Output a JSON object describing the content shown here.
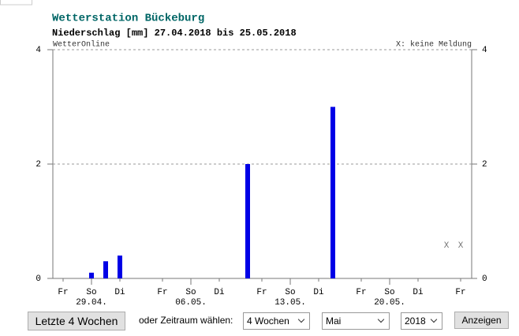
{
  "chart_data": {
    "type": "bar",
    "title": "Wetterstation Bückeburg",
    "subtitle": "Niederschlag [mm] 27.04.2018 bis 25.05.2018",
    "source": "WetterOnline",
    "legend_note": "X: keine Meldung",
    "missing_marker": "X",
    "categories": [
      "Fr",
      null,
      "So",
      null,
      "Di",
      null,
      null,
      "Fr",
      null,
      "So",
      null,
      "Di",
      null,
      null,
      "Fr",
      null,
      "So",
      null,
      "Di",
      null,
      null,
      "Fr",
      null,
      "So",
      null,
      "Di",
      null,
      null,
      "Fr"
    ],
    "date_labels": [
      null,
      null,
      "29.04.",
      null,
      null,
      null,
      null,
      null,
      null,
      "06.05.",
      null,
      null,
      null,
      null,
      null,
      null,
      "13.05.",
      null,
      null,
      null,
      null,
      null,
      null,
      "20.05.",
      null,
      null,
      null,
      null,
      null
    ],
    "values": [
      0,
      0,
      0.1,
      0.3,
      0.4,
      0,
      0,
      0,
      0,
      0,
      0,
      0,
      0,
      2,
      0,
      0,
      0,
      0,
      0,
      3,
      0,
      0,
      0,
      0,
      0,
      0,
      0,
      null,
      null
    ],
    "color": "#0000e6",
    "ylim": [
      0,
      4
    ],
    "yticks": [
      0,
      2,
      4
    ],
    "grid": true
  },
  "controls": {
    "recent_button": "Letzte 4 Wochen",
    "period_label": "oder Zeitraum wählen:",
    "range_select": "4 Wochen",
    "month_select": "Mai",
    "year_select": "2018",
    "show_button": "Anzeigen"
  }
}
